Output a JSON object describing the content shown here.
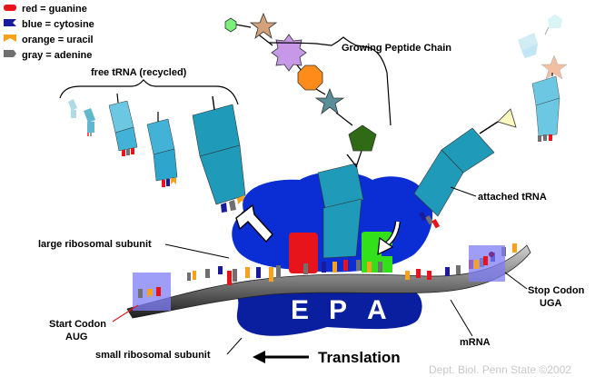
{
  "legend": [
    {
      "text": "red = guanine",
      "color": "#e8141b"
    },
    {
      "text": "blue = cytosine",
      "color": "#1a1a9c"
    },
    {
      "text": "orange = uracil",
      "color": "#f7a21b"
    },
    {
      "text": "gray = adenine",
      "color": "#707070"
    }
  ],
  "labels": {
    "free_trna": "free tRNA (recycled)",
    "growing_chain": "Growing Peptide Chain",
    "attached_trna": "attached tRNA",
    "large_subunit": "large ribosomal subunit",
    "start_codon": "Start Codon",
    "start_codon_seq": "AUG",
    "stop_codon": "Stop Codon",
    "stop_codon_seq": "UGA",
    "mrna": "mRNA",
    "small_subunit": "small ribosomal subunit",
    "translation": "Translation",
    "credit": "Dept. Biol. Penn State ©2002"
  },
  "sites": [
    "E",
    "P",
    "A"
  ],
  "colors": {
    "ribosome_large": "#0a2dd4",
    "ribosome_small": "#0a1fa0",
    "trna": "#1f9ab8",
    "e_site": "#e8141b",
    "a_site": "#33e11a",
    "codon_box": "#7d7df5"
  }
}
